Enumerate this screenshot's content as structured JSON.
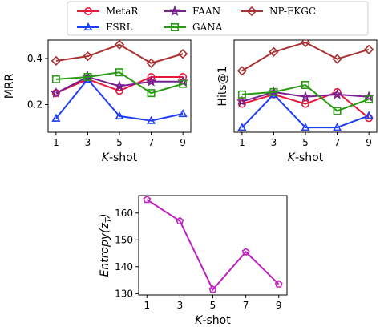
{
  "legend": {
    "placement": "top-center",
    "entries": [
      {
        "name": "MetaR",
        "color": "#e8173b",
        "marker": "circle"
      },
      {
        "name": "FSRL",
        "color": "#1f3df5",
        "marker": "triangle"
      },
      {
        "name": "FAAN",
        "color": "#7a1f8f",
        "marker": "star"
      },
      {
        "name": "GANA",
        "color": "#2a9a14",
        "marker": "square"
      },
      {
        "name": "NP-FKGC",
        "color": "#a83232",
        "marker": "diamond"
      }
    ]
  },
  "chart_data": [
    {
      "type": "line",
      "x": [
        1,
        3,
        5,
        7,
        9
      ],
      "xlabel_italic": "K",
      "xlabel_rest": "-shot",
      "ylabel": "MRR",
      "yticks": [
        0.2,
        0.4
      ],
      "ylim": [
        0.08,
        0.48
      ],
      "grid": false,
      "series": [
        {
          "name": "MetaR",
          "values": [
            0.25,
            0.31,
            0.26,
            0.32,
            0.32
          ]
        },
        {
          "name": "FSRL",
          "values": [
            0.14,
            0.31,
            0.15,
            0.13,
            0.16
          ]
        },
        {
          "name": "FAAN",
          "values": [
            0.25,
            0.32,
            0.28,
            0.3,
            0.3
          ]
        },
        {
          "name": "GANA",
          "values": [
            0.31,
            0.32,
            0.34,
            0.25,
            0.29
          ]
        },
        {
          "name": "NP-FKGC",
          "values": [
            0.39,
            0.41,
            0.46,
            0.38,
            0.42
          ]
        }
      ]
    },
    {
      "type": "line",
      "x": [
        1,
        3,
        5,
        7,
        9
      ],
      "xlabel_italic": "K",
      "xlabel_rest": "-shot",
      "ylabel": "Hits@1",
      "yticks": [],
      "ylim": [
        0.05,
        0.44
      ],
      "grid": false,
      "series": [
        {
          "name": "MetaR",
          "values": [
            0.17,
            0.21,
            0.17,
            0.22,
            0.11
          ]
        },
        {
          "name": "FSRL",
          "values": [
            0.07,
            0.21,
            0.07,
            0.07,
            0.12
          ]
        },
        {
          "name": "FAAN",
          "values": [
            0.18,
            0.22,
            0.2,
            0.21,
            0.2
          ]
        },
        {
          "name": "GANA",
          "values": [
            0.21,
            0.22,
            0.25,
            0.14,
            0.19
          ]
        },
        {
          "name": "NP-FKGC",
          "values": [
            0.31,
            0.39,
            0.43,
            0.36,
            0.4
          ]
        }
      ]
    },
    {
      "type": "line",
      "x": [
        1,
        3,
        5,
        7,
        9
      ],
      "xlabel_italic": "K",
      "xlabel_rest": "-shot",
      "ylabel": "Entropy(z_T)",
      "ylabel_main": "Entropy(z",
      "ylabel_sub": "T",
      "ylabel_close": ")",
      "yticks": [
        130,
        140,
        150,
        160
      ],
      "ylim": [
        129.5,
        166.5
      ],
      "grid": false,
      "series": [
        {
          "name": "",
          "color": "#c020c0",
          "marker": "pentagon",
          "values": [
            165,
            157,
            131.5,
            145.5,
            133.5
          ]
        }
      ]
    }
  ]
}
